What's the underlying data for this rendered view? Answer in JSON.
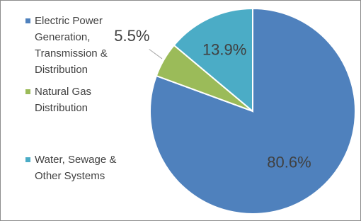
{
  "chart_data": {
    "type": "pie",
    "categories": [
      "Electric Power Generation, Transmission & Distribution",
      "Natural Gas Distribution",
      "Water, Sewage & Other Systems"
    ],
    "values": [
      80.6,
      5.5,
      13.9
    ],
    "value_labels": [
      "80.6%",
      "5.5%",
      "13.9%"
    ],
    "colors": [
      "#4f81bd",
      "#9bbb59",
      "#4bacc6"
    ],
    "legend": "left"
  }
}
